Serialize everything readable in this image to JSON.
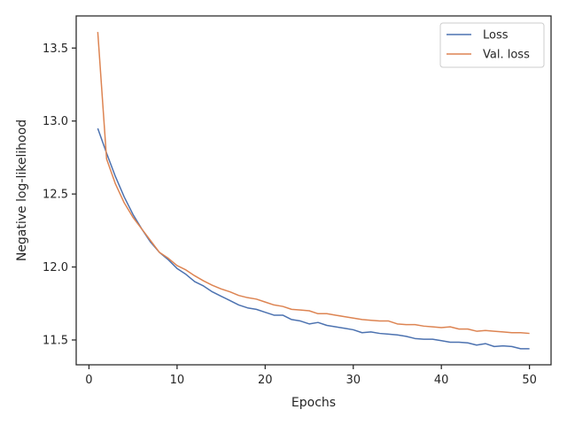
{
  "chart_data": {
    "type": "line",
    "title": "",
    "xlabel": "Epochs",
    "ylabel": "Negative log-likelihood",
    "xlim": [
      -1.45,
      52.45
    ],
    "ylim": [
      11.33,
      13.72
    ],
    "xticks": [
      0,
      10,
      20,
      30,
      40,
      50
    ],
    "yticks": [
      11.5,
      12.0,
      12.5,
      13.0,
      13.5
    ],
    "grid": false,
    "legend_position": "top-right",
    "colors": {
      "Loss": "#4c72b0",
      "Val. loss": "#dd8452"
    },
    "x": [
      1,
      2,
      3,
      4,
      5,
      6,
      7,
      8,
      9,
      10,
      11,
      12,
      13,
      14,
      15,
      16,
      17,
      18,
      19,
      20,
      21,
      22,
      23,
      24,
      25,
      26,
      27,
      28,
      29,
      30,
      31,
      32,
      33,
      34,
      35,
      36,
      37,
      38,
      39,
      40,
      41,
      42,
      43,
      44,
      45,
      46,
      47,
      48,
      49,
      50
    ],
    "series": [
      {
        "name": "Loss",
        "values": [
          12.95,
          12.78,
          12.62,
          12.48,
          12.36,
          12.26,
          12.17,
          12.1,
          12.05,
          11.99,
          11.95,
          11.9,
          11.87,
          11.83,
          11.8,
          11.77,
          11.74,
          11.72,
          11.71,
          11.69,
          11.67,
          11.67,
          11.64,
          11.63,
          11.61,
          11.62,
          11.6,
          11.59,
          11.58,
          11.57,
          11.55,
          11.555,
          11.545,
          11.54,
          11.535,
          11.525,
          11.51,
          11.505,
          11.505,
          11.495,
          11.485,
          11.485,
          11.48,
          11.465,
          11.475,
          11.455,
          11.46,
          11.455,
          11.44,
          11.44
        ]
      },
      {
        "name": "Val. loss",
        "values": [
          13.61,
          12.74,
          12.57,
          12.44,
          12.34,
          12.26,
          12.18,
          12.1,
          12.06,
          12.01,
          11.98,
          11.94,
          11.905,
          11.875,
          11.85,
          11.83,
          11.805,
          11.79,
          11.78,
          11.76,
          11.74,
          11.73,
          11.71,
          11.705,
          11.7,
          11.68,
          11.68,
          11.67,
          11.66,
          11.65,
          11.64,
          11.635,
          11.63,
          11.63,
          11.61,
          11.605,
          11.605,
          11.595,
          11.59,
          11.585,
          11.59,
          11.575,
          11.575,
          11.56,
          11.565,
          11.56,
          11.555,
          11.55,
          11.55,
          11.545
        ]
      }
    ]
  }
}
